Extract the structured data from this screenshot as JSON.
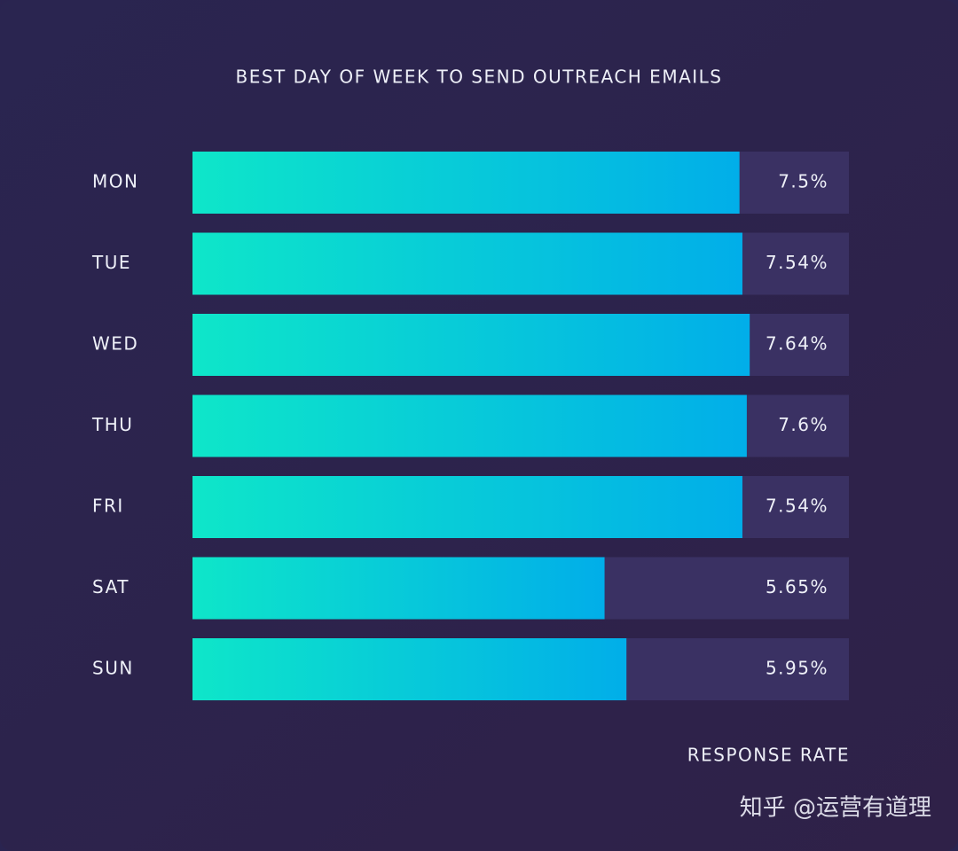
{
  "chart_data": {
    "type": "bar",
    "orientation": "horizontal",
    "title": "BEST DAY OF WEEK TO SEND OUTREACH EMAILS",
    "categories": [
      "MON",
      "TUE",
      "WED",
      "THU",
      "FRI",
      "SAT",
      "SUN"
    ],
    "values": [
      7.5,
      7.54,
      7.64,
      7.6,
      7.54,
      5.65,
      5.95
    ],
    "value_labels": [
      "7.5%",
      "7.54%",
      "7.64%",
      "7.6%",
      "7.54%",
      "5.65%",
      "5.95%"
    ],
    "xlim": [
      0,
      9
    ],
    "xlabel": "RESPONSE RATE",
    "color_start": "#0ee6c9",
    "color_end": "#01aee9",
    "watermark": "知乎 @运营有道理"
  }
}
